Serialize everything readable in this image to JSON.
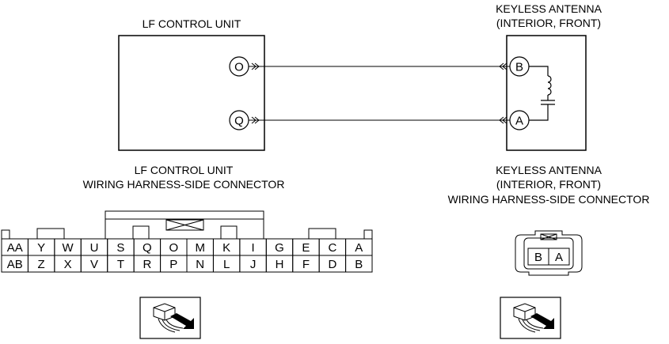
{
  "lf_unit": {
    "title": "LF CONTROL UNIT",
    "pins": {
      "top": "O",
      "bottom": "Q"
    }
  },
  "antenna": {
    "title_line1": "KEYLESS ANTENNA",
    "title_line2": "(INTERIOR, FRONT)",
    "pins": {
      "top": "B",
      "bottom": "A"
    }
  },
  "lf_connector": {
    "caption_line1": "LF CONTROL UNIT",
    "caption_line2": "WIRING HARNESS-SIDE CONNECTOR",
    "row1": [
      "AA",
      "Y",
      "W",
      "U",
      "S",
      "Q",
      "O",
      "M",
      "K",
      "I",
      "G",
      "E",
      "C",
      "A"
    ],
    "row2": [
      "AB",
      "Z",
      "X",
      "V",
      "T",
      "R",
      "P",
      "N",
      "L",
      "J",
      "H",
      "F",
      "D",
      "B"
    ]
  },
  "antenna_connector": {
    "caption_line1": "KEYLESS ANTENNA",
    "caption_line2": "(INTERIOR, FRONT)",
    "caption_line3": "WIRING HARNESS-SIDE CONNECTOR",
    "pins": [
      "B",
      "A"
    ]
  }
}
